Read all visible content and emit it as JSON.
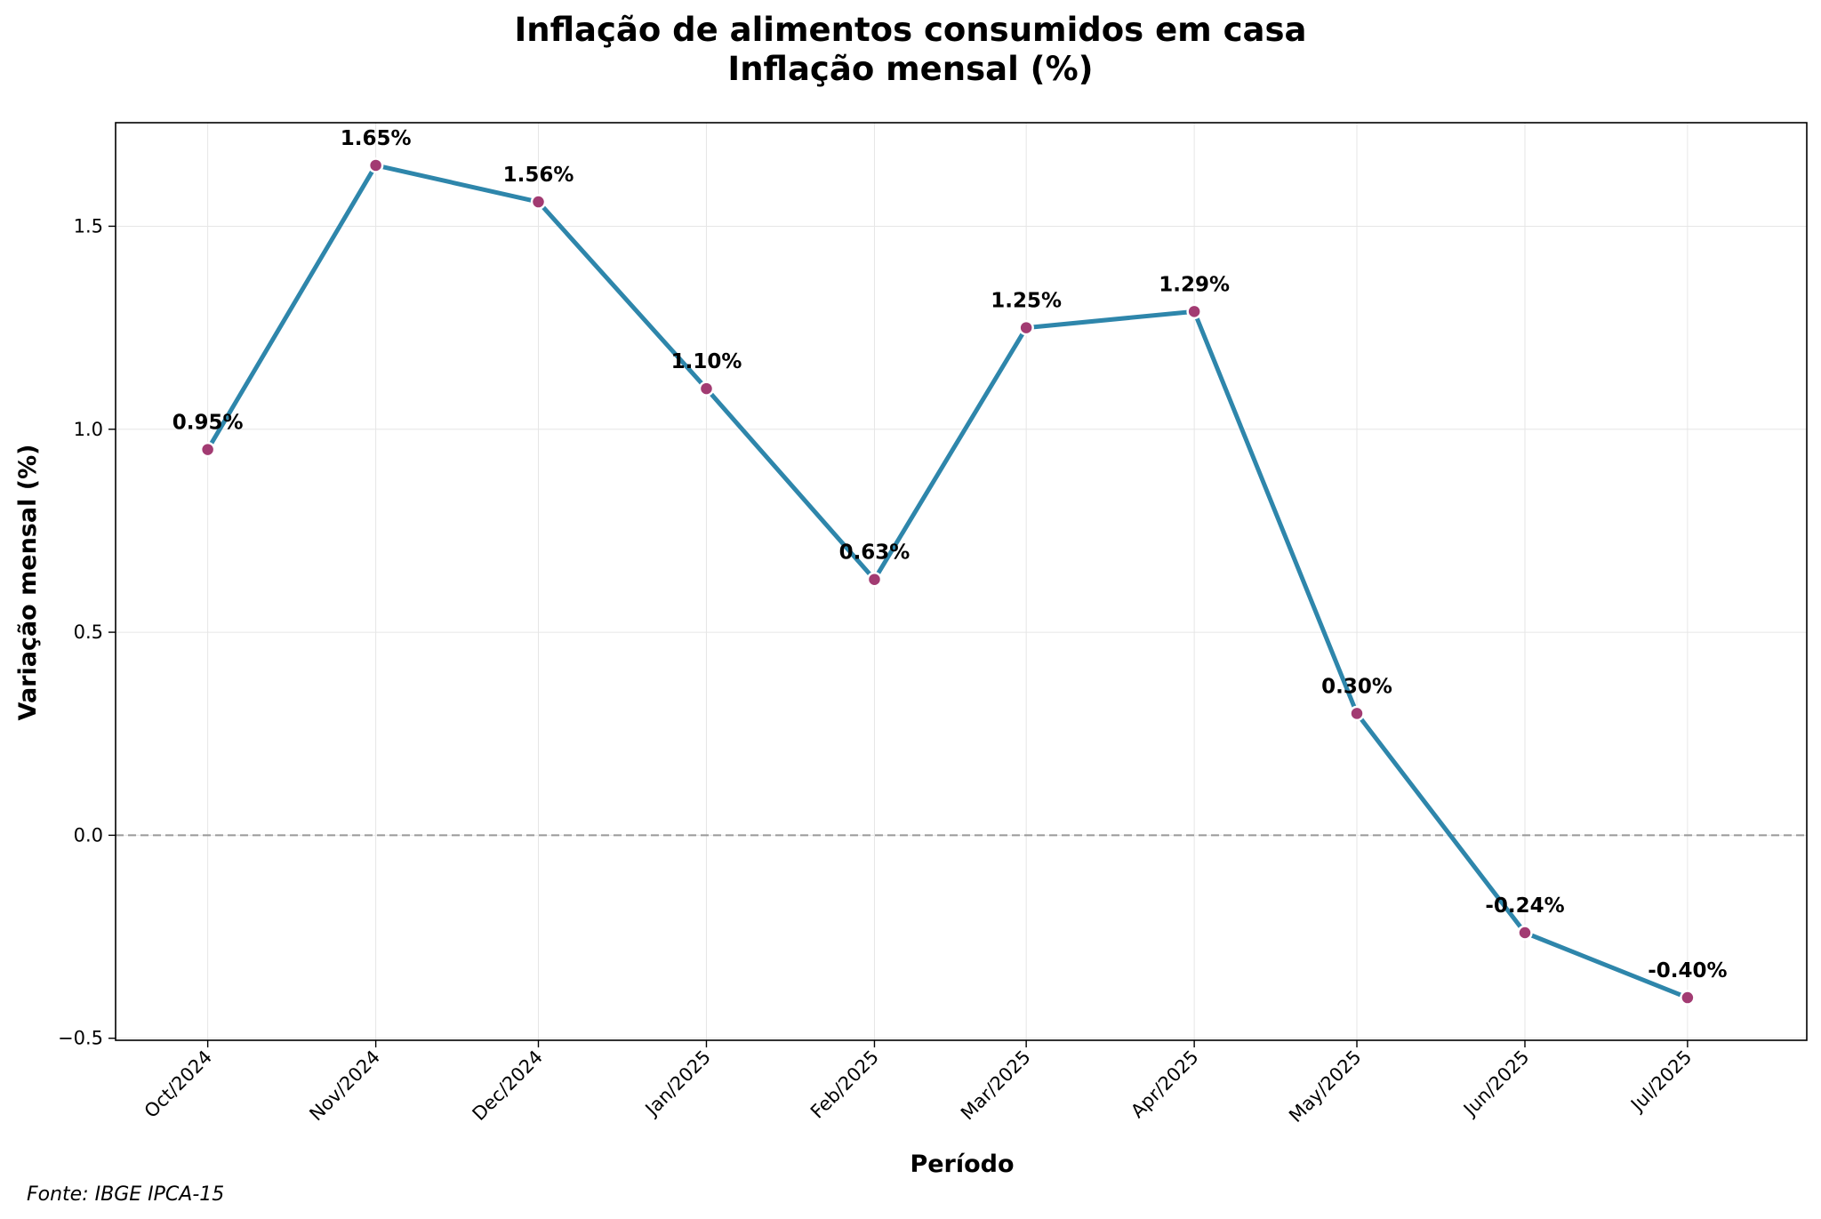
{
  "chart_data": {
    "type": "line",
    "title": "Inflação de alimentos consumidos em casa",
    "subtitle": "Inflação mensal (%)",
    "xlabel": "Período",
    "ylabel": "Variação mensal (%)",
    "categories": [
      "Oct/2024",
      "Nov/2024",
      "Dec/2024",
      "Jan/2025",
      "Feb/2025",
      "Mar/2025",
      "Apr/2025",
      "May/2025",
      "Jun/2025",
      "Jul/2025"
    ],
    "x_dates": [
      "2024-10-01",
      "2024-11-01",
      "2024-12-01",
      "2025-01-01",
      "2025-02-01",
      "2025-03-01",
      "2025-04-01",
      "2025-05-01",
      "2025-06-01",
      "2025-07-01"
    ],
    "series": [
      {
        "values": [
          0.95,
          1.65,
          1.56,
          1.1,
          0.63,
          1.25,
          1.29,
          0.3,
          -0.24,
          -0.4
        ]
      }
    ],
    "data_labels": [
      "0.95%",
      "1.65%",
      "1.56%",
      "1.10%",
      "0.63%",
      "1.25%",
      "1.29%",
      "0.30%",
      "-0.24%",
      "-0.40%"
    ],
    "yticks": [
      -0.5,
      0.0,
      0.5,
      1.0,
      1.5
    ],
    "ytick_labels": [
      "−0.5",
      "0.0",
      "0.5",
      "1.0",
      "1.5"
    ],
    "ylim": [
      -0.505,
      1.755
    ],
    "xlim": [
      "2024-09-14",
      "2025-07-23"
    ],
    "reference_line": 0.0,
    "grid": true,
    "legend": "none",
    "source": "Fonte: IBGE IPCA-15",
    "colors": {
      "line": "#2E86AB",
      "marker": "#A23B72",
      "marker_edge": "#ffffff",
      "reference_line": "#999999",
      "grid": "#e6e6e6"
    }
  }
}
